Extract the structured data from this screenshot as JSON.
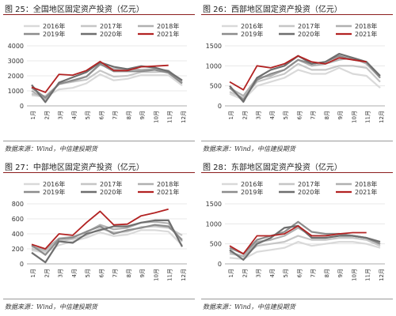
{
  "palette": {
    "2016": "#d9d9d9",
    "2017": "#c6c6c6",
    "2018": "#b0b0b0",
    "2019": "#8c8c8c",
    "2020": "#6e6e6e",
    "2021": "#b22222",
    "accent_rule": "#8B1E1E"
  },
  "chart_data": [
    {
      "type": "line",
      "title": "图 25：全国地区固定资产投资（亿元）",
      "source": "数据来源：Wind，中信建投期货",
      "categories": [
        "1月",
        "2月",
        "3月",
        "4月",
        "5月",
        "6月",
        "7月",
        "8月",
        "9月",
        "10月",
        "11月",
        "12月"
      ],
      "ylim": [
        0,
        4000
      ],
      "yticks": [
        "0",
        "1000",
        "2000",
        "3000",
        "4000"
      ],
      "series": [
        {
          "name": "2016年",
          "values": [
            700,
            600,
            1100,
            1200,
            1500,
            2100,
            1700,
            1800,
            2050,
            2050,
            2050,
            1350
          ]
        },
        {
          "name": "2017年",
          "values": [
            800,
            650,
            1450,
            1600,
            1750,
            2350,
            1950,
            2000,
            2250,
            2250,
            2300,
            1500
          ]
        },
        {
          "name": "2018年",
          "values": [
            1000,
            450,
            1500,
            1650,
            1950,
            2750,
            2450,
            2450,
            2400,
            2450,
            2350,
            1600
          ]
        },
        {
          "name": "2019年",
          "values": [
            1200,
            550,
            1450,
            1700,
            1950,
            2800,
            2300,
            2300,
            2300,
            2400,
            2200,
            1500
          ]
        },
        {
          "name": "2020年",
          "values": [
            1400,
            250,
            1550,
            1900,
            2250,
            2900,
            2600,
            2450,
            2650,
            2550,
            2300,
            1700
          ]
        },
        {
          "name": "2021年",
          "values": [
            1250,
            900,
            2100,
            2050,
            2350,
            2950,
            2350,
            2350,
            2600,
            2650,
            2700,
            null
          ]
        }
      ]
    },
    {
      "type": "line",
      "title": "图 26：西部地区固定资产投资（亿元）",
      "source": "数据来源：Wind，中信建投期货",
      "categories": [
        "1月",
        "2月",
        "3月",
        "4月",
        "5月",
        "6月",
        "7月",
        "8月",
        "9月",
        "10月",
        "11月",
        "12月"
      ],
      "ylim": [
        0,
        1500
      ],
      "yticks": [
        "0",
        "500",
        "1000",
        "1500"
      ],
      "series": [
        {
          "name": "2016年",
          "values": [
            300,
            150,
            500,
            600,
            700,
            900,
            800,
            800,
            950,
            800,
            750,
            450
          ]
        },
        {
          "name": "2017年",
          "values": [
            350,
            200,
            600,
            700,
            800,
            1050,
            900,
            900,
            1000,
            1000,
            950,
            600
          ]
        },
        {
          "name": "2018年",
          "values": [
            450,
            250,
            700,
            750,
            900,
            1150,
            1000,
            1050,
            1150,
            1200,
            1050,
            700
          ]
        },
        {
          "name": "2019年",
          "values": [
            450,
            150,
            650,
            800,
            900,
            1150,
            1050,
            1100,
            1250,
            1150,
            1100,
            700
          ]
        },
        {
          "name": "2020年",
          "values": [
            500,
            100,
            700,
            900,
            1000,
            1250,
            1050,
            1100,
            1300,
            1200,
            1100,
            750
          ]
        },
        {
          "name": "2021年",
          "values": [
            600,
            400,
            1000,
            950,
            1050,
            1250,
            1100,
            1050,
            1200,
            1150,
            1100,
            null
          ]
        }
      ]
    },
    {
      "type": "line",
      "title": "图 27：中部地区固定资产投资（亿元）",
      "source": "数据来源：Wind，中信建投期货",
      "categories": [
        "1月",
        "2月",
        "3月",
        "4月",
        "5月",
        "6月",
        "7月",
        "8月",
        "9月",
        "10月",
        "11月",
        "12月"
      ],
      "ylim": [
        0,
        800
      ],
      "yticks": [
        "0",
        "200",
        "400",
        "600",
        "800"
      ],
      "series": [
        {
          "name": "2016年",
          "values": [
            180,
            150,
            250,
            300,
            350,
            420,
            370,
            390,
            450,
            450,
            430,
            250
          ]
        },
        {
          "name": "2017年",
          "values": [
            200,
            170,
            300,
            330,
            380,
            470,
            420,
            430,
            490,
            500,
            480,
            380
          ]
        },
        {
          "name": "2018年",
          "values": [
            230,
            190,
            340,
            360,
            420,
            520,
            460,
            480,
            550,
            560,
            540,
            300
          ]
        },
        {
          "name": "2019年",
          "values": [
            250,
            120,
            330,
            350,
            430,
            500,
            400,
            450,
            480,
            520,
            500,
            320
          ]
        },
        {
          "name": "2020年",
          "values": [
            150,
            20,
            300,
            280,
            400,
            450,
            500,
            500,
            550,
            580,
            580,
            230
          ]
        },
        {
          "name": "2021年",
          "values": [
            260,
            200,
            400,
            380,
            550,
            700,
            520,
            530,
            640,
            680,
            730,
            null
          ]
        }
      ]
    },
    {
      "type": "line",
      "title": "图 28：东部地区固定资产投资（亿元）",
      "source": "数据来源：Wind，中信建投期货",
      "categories": [
        "1月",
        "2月",
        "3月",
        "4月",
        "5月",
        "6月",
        "7月",
        "8月",
        "9月",
        "10月",
        "11月",
        "12月"
      ],
      "ylim": [
        0,
        1500
      ],
      "yticks": [
        "0",
        "500",
        "1000",
        "1500"
      ],
      "series": [
        {
          "name": "2016年",
          "values": [
            150,
            120,
            300,
            350,
            400,
            550,
            450,
            500,
            550,
            550,
            500,
            400
          ]
        },
        {
          "name": "2017年",
          "values": [
            250,
            200,
            450,
            500,
            550,
            700,
            600,
            600,
            650,
            650,
            600,
            450
          ]
        },
        {
          "name": "2018年",
          "values": [
            300,
            180,
            550,
            600,
            700,
            900,
            700,
            700,
            750,
            700,
            650,
            500
          ]
        },
        {
          "name": "2019年",
          "values": [
            400,
            250,
            600,
            700,
            800,
            1050,
            800,
            750,
            750,
            700,
            650,
            500
          ]
        },
        {
          "name": "2020年",
          "values": [
            350,
            100,
            500,
            650,
            900,
            950,
            650,
            650,
            700,
            700,
            650,
            550
          ]
        },
        {
          "name": "2021年",
          "values": [
            450,
            250,
            700,
            700,
            750,
            950,
            700,
            700,
            750,
            780,
            780,
            null
          ]
        }
      ]
    }
  ]
}
